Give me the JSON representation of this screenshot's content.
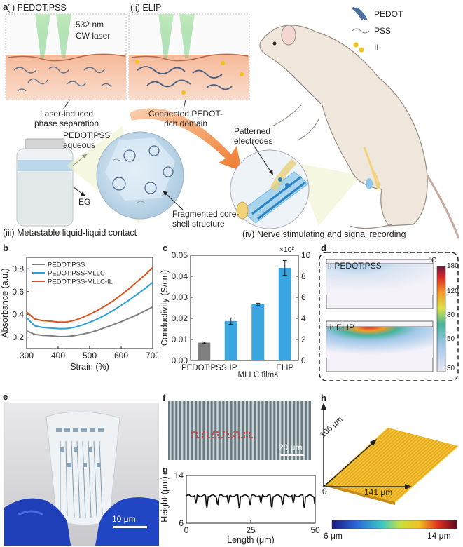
{
  "panel_a": {
    "label": "a",
    "inset_i_title": "(i) PEDOT:PSS",
    "inset_ii_title": "(ii) ELIP",
    "laser_line1": "532 nm",
    "laser_line2": "CW laser",
    "caption_i_line1": "Laser-induced",
    "caption_i_line2": "phase separation",
    "caption_ii_line1": "Connected PEDOT-",
    "caption_ii_line2": "rich domain",
    "legend": [
      {
        "label": "PEDOT",
        "color": "#4a6fa0"
      },
      {
        "label": "PSS",
        "color": "#8a8a8a"
      },
      {
        "label": "IL",
        "color": "#f2c314"
      }
    ],
    "aqueous_line1": "PEDOT:PSS",
    "aqueous_line2": "aqueous",
    "eg_label": "EG",
    "iii_caption": "(iii) Metastable liquid-liquid contact",
    "fragment_line1": "Fragmented core-",
    "fragment_line2": "shell structure",
    "electrodes_line1": "Patterned",
    "electrodes_line2": "electrodes",
    "iv_caption": "(iv) Nerve stimulating and signal recording"
  },
  "panel_b": {
    "label": "b",
    "chart_data": {
      "type": "line",
      "xlabel": "Strain (%)",
      "ylabel": "Absorbance (a.u.)",
      "xlim": [
        300,
        700
      ],
      "ylim": [
        0.1,
        0.9
      ],
      "xticks": [
        300,
        400,
        500,
        600,
        700
      ],
      "yticks": [
        0.2,
        0.4,
        0.6,
        0.8
      ],
      "legend_position": "top-left",
      "series": [
        {
          "name": "PEDOT:PSS",
          "color": "#7f7f7f",
          "x": [
            300,
            325,
            350,
            375,
            400,
            425,
            450,
            475,
            500,
            525,
            550,
            575,
            600,
            625,
            650,
            675,
            700
          ],
          "y": [
            0.255,
            0.225,
            0.215,
            0.212,
            0.205,
            0.205,
            0.212,
            0.225,
            0.24,
            0.26,
            0.285,
            0.31,
            0.335,
            0.365,
            0.395,
            0.43,
            0.465
          ]
        },
        {
          "name": "PEDOT:PSS-MLLC",
          "color": "#2a9fd8",
          "x": [
            300,
            325,
            350,
            375,
            400,
            425,
            450,
            475,
            500,
            525,
            550,
            575,
            600,
            625,
            650,
            675,
            700
          ],
          "y": [
            0.37,
            0.3,
            0.285,
            0.28,
            0.275,
            0.275,
            0.285,
            0.305,
            0.33,
            0.36,
            0.395,
            0.435,
            0.48,
            0.525,
            0.575,
            0.625,
            0.68
          ]
        },
        {
          "name": "PEDOT:PSS-MLLC-IL",
          "color": "#d9541e",
          "x": [
            300,
            325,
            350,
            375,
            400,
            425,
            450,
            475,
            500,
            525,
            550,
            575,
            600,
            625,
            650,
            675,
            700
          ],
          "y": [
            0.42,
            0.36,
            0.345,
            0.34,
            0.332,
            0.332,
            0.345,
            0.37,
            0.4,
            0.435,
            0.475,
            0.52,
            0.57,
            0.625,
            0.685,
            0.745,
            0.81
          ]
        }
      ]
    }
  },
  "panel_c": {
    "label": "c",
    "chart_data": {
      "type": "bar",
      "ylabel": "Conductivity (S/cm)",
      "right_multiplier": "×10²",
      "categories": [
        "PEDOT:PSS",
        "LIP",
        "MLLC films",
        "ELIP"
      ],
      "values": [
        0.0085,
        0.0187,
        0.0267,
        0.044
      ],
      "errors": [
        0.0003,
        0.0015,
        0.0005,
        0.0035
      ],
      "ylim": [
        0,
        0.05
      ],
      "yticks": [
        0.0,
        0.01,
        0.02,
        0.03,
        0.04,
        0.05
      ],
      "ytick_labels": [
        "0.00",
        "0.01",
        "0.02",
        "0.03",
        "0.04",
        "0.05"
      ],
      "y2lim": [
        0,
        10
      ],
      "y2ticks": [
        0,
        2,
        4,
        6,
        8,
        10
      ],
      "colors": [
        "#808080",
        "#3aa5de",
        "#3aa5de",
        "#3aa5de"
      ]
    }
  },
  "panel_d": {
    "label": "d",
    "sub_i": "i: PEDOT:PSS",
    "sub_ii": "ii: ELIP",
    "unit": "°C",
    "colorbar_ticks": [
      180,
      120,
      80,
      50,
      30
    ]
  },
  "panel_e": {
    "label": "e",
    "scale": "10 μm"
  },
  "panel_f": {
    "label": "f",
    "scale": "20 μm"
  },
  "panel_g": {
    "label": "g",
    "chart_data": {
      "type": "line",
      "xlabel": "Length (μm)",
      "ylabel": "Height (μm)",
      "xlim": [
        0,
        50
      ],
      "ylim": [
        6,
        14
      ],
      "xticks": [
        0,
        25,
        50
      ],
      "yticks": [
        6,
        14
      ]
    }
  },
  "panel_h": {
    "label": "h",
    "y_dim": "106 μm",
    "x_dim": "141 μm",
    "origin": "0",
    "colorbar_min": "6 μm",
    "colorbar_max": "14 μm"
  }
}
